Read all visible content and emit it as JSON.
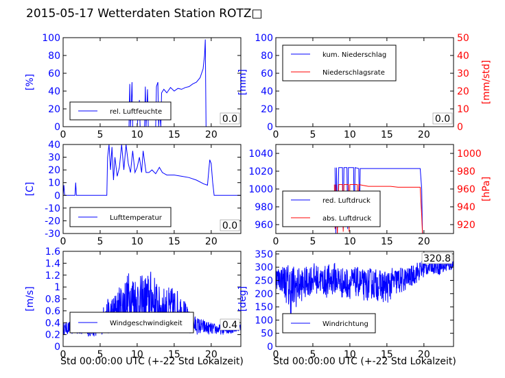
{
  "title": "2015-05-17 Wetterdaten Station ROTZ□",
  "colors": {
    "blue": "#0000ff",
    "red": "#ff0000",
    "black": "#000000"
  },
  "chart_data": [
    {
      "id": "humidity",
      "type": "line",
      "xlim": [
        0,
        24
      ],
      "ylim": [
        0,
        100
      ],
      "xticks": [
        0,
        5,
        10,
        15,
        20
      ],
      "yticks": [
        0,
        20,
        40,
        60,
        80,
        100
      ],
      "ylabel": "[%]",
      "legend": {
        "placement": "lower-left",
        "entries": [
          "rel. Luftfeuchte"
        ]
      },
      "current_value": "0.0",
      "series": [
        {
          "name": "rel. Luftfeuchte",
          "color": "#0000ff",
          "points": [
            [
              0,
              0
            ],
            [
              8.9,
              0
            ],
            [
              9.0,
              48
            ],
            [
              9.1,
              0
            ],
            [
              9.3,
              50
            ],
            [
              9.4,
              0
            ],
            [
              10,
              0
            ],
            [
              10.3,
              30
            ],
            [
              10.4,
              0
            ],
            [
              11.0,
              0
            ],
            [
              11.1,
              45
            ],
            [
              11.2,
              0
            ],
            [
              11.4,
              42
            ],
            [
              11.5,
              0
            ],
            [
              12.5,
              0
            ],
            [
              12.6,
              45
            ],
            [
              12.8,
              50
            ],
            [
              12.9,
              0
            ],
            [
              13.0,
              20
            ],
            [
              13.2,
              0
            ],
            [
              13.3,
              38
            ],
            [
              13.6,
              42
            ],
            [
              14,
              38
            ],
            [
              14.5,
              44
            ],
            [
              15,
              40
            ],
            [
              15.5,
              43
            ],
            [
              16,
              42
            ],
            [
              16.5,
              44
            ],
            [
              17,
              45
            ],
            [
              17.5,
              48
            ],
            [
              18,
              50
            ],
            [
              18.5,
              55
            ],
            [
              18.9,
              65
            ],
            [
              19.1,
              80
            ],
            [
              19.2,
              98
            ],
            [
              19.3,
              0
            ],
            [
              24,
              0
            ]
          ]
        }
      ]
    },
    {
      "id": "precipitation",
      "type": "line",
      "xlim": [
        0,
        24
      ],
      "ylim": [
        0,
        100
      ],
      "y2lim": [
        0,
        50
      ],
      "xticks": [
        0,
        5,
        10,
        15,
        20
      ],
      "yticks": [
        0,
        20,
        40,
        60,
        80,
        100
      ],
      "y2ticks": [
        0,
        10,
        20,
        30,
        40,
        50
      ],
      "ylabel": "[mm]",
      "y2label": "[mm/std]",
      "legend": {
        "placement": "upper-left",
        "entries": [
          "kum. Niederschlag",
          "Niederschlagsrate"
        ]
      },
      "current_value": "0.0",
      "series": [
        {
          "name": "kum. Niederschlag",
          "color": "#0000ff",
          "axis": "left",
          "points": [
            [
              0,
              0
            ],
            [
              24,
              0
            ]
          ]
        },
        {
          "name": "Niederschlagsrate",
          "color": "#ff0000",
          "axis": "right",
          "points": [
            [
              0,
              0
            ],
            [
              24,
              0
            ]
          ]
        }
      ]
    },
    {
      "id": "temperature",
      "type": "line",
      "xlim": [
        0,
        24
      ],
      "ylim": [
        -30,
        40
      ],
      "xticks": [
        0,
        5,
        10,
        15,
        20
      ],
      "yticks": [
        -30,
        -20,
        -10,
        0,
        10,
        20,
        30,
        40
      ],
      "ylabel": "[C]",
      "legend": {
        "placement": "lower-left",
        "entries": [
          "Lufttemperatur"
        ]
      },
      "current_value": "0.0",
      "series": [
        {
          "name": "Lufttemperatur",
          "color": "#0000ff",
          "points": [
            [
              0,
              0
            ],
            [
              0.1,
              8
            ],
            [
              0.2,
              0
            ],
            [
              1.6,
              0
            ],
            [
              1.7,
              10
            ],
            [
              1.8,
              0
            ],
            [
              5.9,
              0
            ],
            [
              6.0,
              30
            ],
            [
              6.2,
              40
            ],
            [
              6.4,
              20
            ],
            [
              6.6,
              38
            ],
            [
              6.8,
              12
            ],
            [
              7.0,
              30
            ],
            [
              7.3,
              15
            ],
            [
              7.6,
              22
            ],
            [
              7.9,
              40
            ],
            [
              8.2,
              20
            ],
            [
              8.5,
              40
            ],
            [
              8.8,
              25
            ],
            [
              9.1,
              18
            ],
            [
              9.4,
              35
            ],
            [
              9.7,
              18
            ],
            [
              10.0,
              22
            ],
            [
              10.3,
              30
            ],
            [
              10.6,
              18
            ],
            [
              10.8,
              35
            ],
            [
              11.2,
              18
            ],
            [
              11.6,
              18
            ],
            [
              12.0,
              20
            ],
            [
              12.5,
              17
            ],
            [
              13.0,
              22
            ],
            [
              13.4,
              18
            ],
            [
              14.0,
              16
            ],
            [
              15,
              16
            ],
            [
              16,
              15
            ],
            [
              17,
              14
            ],
            [
              18,
              12
            ],
            [
              19,
              9
            ],
            [
              19.5,
              8
            ],
            [
              19.8,
              28
            ],
            [
              20.0,
              25
            ],
            [
              20.2,
              10
            ],
            [
              20.4,
              0
            ],
            [
              24,
              0
            ]
          ]
        }
      ]
    },
    {
      "id": "pressure",
      "type": "line",
      "xlim": [
        0,
        24
      ],
      "ylim": [
        950,
        1050
      ],
      "y2lim": [
        910,
        1010
      ],
      "xticks": [
        0,
        5,
        10,
        15,
        20
      ],
      "yticks": [
        960,
        980,
        1000,
        1020,
        1040
      ],
      "y2ticks": [
        920,
        940,
        960,
        980,
        1000
      ],
      "ylabel": "",
      "y2label": "[hPa]",
      "legend": {
        "placement": "lower-left",
        "entries": [
          "red. Luftdruck",
          "abs. Luftdruck"
        ]
      },
      "series": [
        {
          "name": "red. Luftdruck",
          "color": "#0000ff",
          "axis": "left",
          "points": [
            [
              8.0,
              1024
            ],
            [
              8.1,
              950
            ],
            [
              8.2,
              1024
            ],
            [
              8.3,
              950
            ],
            [
              8.5,
              1024
            ],
            [
              9.0,
              1024
            ],
            [
              9.1,
              955
            ],
            [
              9.2,
              1024
            ],
            [
              9.6,
              1024
            ],
            [
              9.7,
              955
            ],
            [
              9.8,
              1024
            ],
            [
              10.5,
              1024
            ],
            [
              10.6,
              960
            ],
            [
              10.7,
              1024
            ],
            [
              11.2,
              1023
            ],
            [
              11.3,
              965
            ],
            [
              11.4,
              1023
            ],
            [
              12,
              1023
            ],
            [
              13,
              1023
            ],
            [
              14,
              1023
            ],
            [
              15,
              1023
            ],
            [
              16,
              1023
            ],
            [
              17,
              1023
            ],
            [
              18,
              1023
            ],
            [
              19,
              1023
            ],
            [
              19.5,
              1023
            ],
            [
              19.7,
              1000
            ],
            [
              19.8,
              950
            ]
          ]
        },
        {
          "name": "abs. Luftdruck",
          "color": "#ff0000",
          "axis": "right",
          "points": [
            [
              7.9,
              965
            ],
            [
              8.0,
              915
            ],
            [
              8.1,
              965
            ],
            [
              8.3,
              910
            ],
            [
              8.5,
              965
            ],
            [
              9.0,
              965
            ],
            [
              9.1,
              912
            ],
            [
              9.2,
              965
            ],
            [
              9.8,
              965
            ],
            [
              9.9,
              912
            ],
            [
              10.0,
              965
            ],
            [
              11.0,
              965
            ],
            [
              11.1,
              918
            ],
            [
              11.2,
              965
            ],
            [
              11.8,
              964
            ],
            [
              12.5,
              963
            ],
            [
              13.5,
              963
            ],
            [
              14.5,
              963
            ],
            [
              15.5,
              963
            ],
            [
              16.5,
              962
            ],
            [
              17.5,
              962
            ],
            [
              18.5,
              962
            ],
            [
              19.3,
              962
            ],
            [
              19.5,
              962
            ],
            [
              19.7,
              930
            ],
            [
              19.8,
              910
            ]
          ]
        }
      ]
    },
    {
      "id": "wind-speed",
      "type": "line",
      "xlim": [
        0,
        24
      ],
      "ylim": [
        0,
        1.6
      ],
      "xticks": [
        0,
        5,
        10,
        15,
        20
      ],
      "yticks": [
        0.0,
        0.2,
        0.4,
        0.6,
        0.8,
        1.0,
        1.2,
        1.4,
        1.6
      ],
      "ylabel": "[m/s]",
      "xlabel": "Std 00:00:00 UTC (+-22 Std Lokalzeit)",
      "legend": {
        "placement": "lower-left",
        "entries": [
          "Windgeschwindigkeit"
        ]
      },
      "current_value": "0.4",
      "series": [
        {
          "name": "Windgeschwindigkeit",
          "color": "#0000ff",
          "profile": "noisy",
          "envelope": [
            [
              0,
              0.2,
              0.4
            ],
            [
              2,
              0.2,
              0.45
            ],
            [
              4,
              0.15,
              0.5
            ],
            [
              5,
              0.2,
              0.6
            ],
            [
              6,
              0.2,
              0.8
            ],
            [
              7,
              0.25,
              0.9
            ],
            [
              8,
              0.3,
              1.1
            ],
            [
              9,
              0.3,
              1.3
            ],
            [
              10,
              0.3,
              1.2
            ],
            [
              11,
              0.3,
              1.2
            ],
            [
              12,
              0.3,
              1.3
            ],
            [
              13,
              0.3,
              1.0
            ],
            [
              14,
              0.25,
              1.0
            ],
            [
              15,
              0.3,
              1.0
            ],
            [
              16,
              0.25,
              0.9
            ],
            [
              17,
              0.2,
              0.6
            ],
            [
              18,
              0.2,
              0.5
            ],
            [
              20,
              0.2,
              0.4
            ],
            [
              22,
              0.2,
              0.35
            ],
            [
              24,
              0.25,
              0.4
            ]
          ]
        }
      ]
    },
    {
      "id": "wind-direction",
      "type": "line",
      "xlim": [
        0,
        24
      ],
      "ylim": [
        0,
        360
      ],
      "xticks": [
        0,
        5,
        10,
        15,
        20
      ],
      "yticks": [
        0,
        50,
        100,
        150,
        200,
        250,
        300,
        350
      ],
      "ylabel": "[deg]",
      "xlabel": "Std 00:00:00 UTC (+-22 Std Lokalzeit)",
      "legend": {
        "placement": "lower-left",
        "entries": [
          "Windrichtung"
        ]
      },
      "current_value": "320.8",
      "series": [
        {
          "name": "Windrichtung",
          "color": "#0000ff",
          "profile": "noisy",
          "envelope": [
            [
              0,
              220,
              300
            ],
            [
              1,
              200,
              310
            ],
            [
              2,
              110,
              320
            ],
            [
              3,
              160,
              300
            ],
            [
              4,
              180,
              300
            ],
            [
              5,
              200,
              320
            ],
            [
              6,
              200,
              300
            ],
            [
              7,
              180,
              310
            ],
            [
              8,
              200,
              320
            ],
            [
              9,
              180,
              300
            ],
            [
              10,
              180,
              300
            ],
            [
              11,
              190,
              300
            ],
            [
              12,
              170,
              290
            ],
            [
              13,
              180,
              300
            ],
            [
              14,
              170,
              290
            ],
            [
              15,
              160,
              290
            ],
            [
              16,
              190,
              300
            ],
            [
              17,
              200,
              300
            ],
            [
              18,
              220,
              300
            ],
            [
              19,
              240,
              320
            ],
            [
              20,
              260,
              330
            ],
            [
              21,
              280,
              330
            ],
            [
              22,
              270,
              330
            ],
            [
              23,
              280,
              330
            ],
            [
              24,
              290,
              330
            ]
          ]
        }
      ]
    }
  ]
}
